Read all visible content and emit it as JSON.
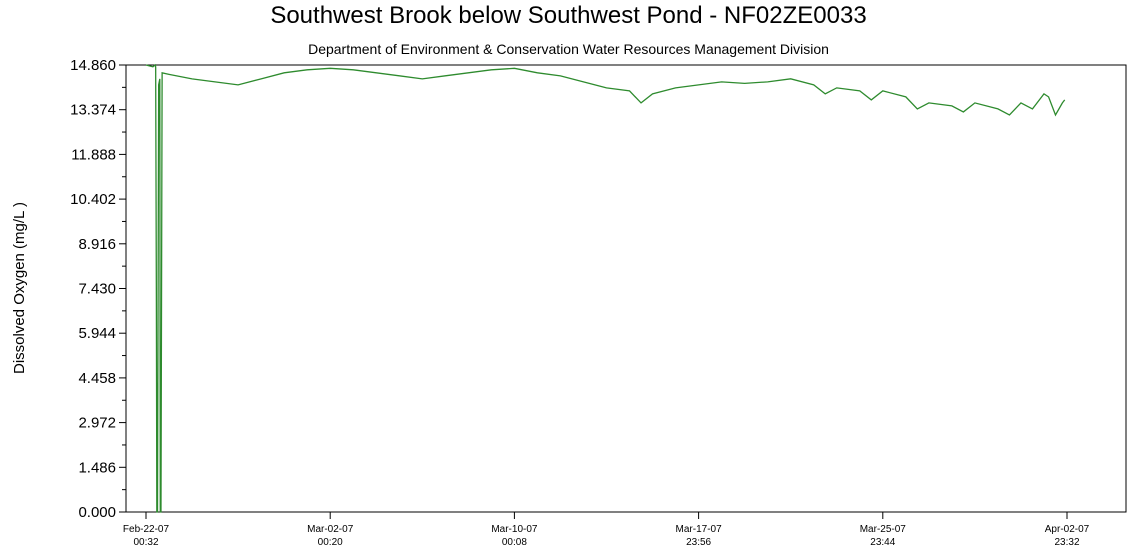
{
  "chart_data": {
    "type": "line",
    "title": "Southwest Brook below Southwest Pond - NF02ZE0033",
    "subtitle": "Department of Environment & Conservation Water Resources Management Division",
    "ylabel": "Dissolved Oxygen (mg/L )",
    "xlabel": "",
    "ylim": [
      0,
      14.86
    ],
    "y_ticks": [
      "0.000",
      "1.486",
      "2.972",
      "4.458",
      "5.944",
      "7.430",
      "8.916",
      "10.402",
      "11.888",
      "13.374",
      "14.860"
    ],
    "x_ticks": [
      {
        "date": "Feb-22-07",
        "time": "00:32",
        "day": 0
      },
      {
        "date": "Mar-02-07",
        "time": "00:20",
        "day": 8
      },
      {
        "date": "Mar-10-07",
        "time": "00:08",
        "day": 16
      },
      {
        "date": "Mar-17-07",
        "time": "23:56",
        "day": 24
      },
      {
        "date": "Mar-25-07",
        "time": "23:44",
        "day": 32
      },
      {
        "date": "Apr-02-07",
        "time": "23:32",
        "day": 40
      }
    ],
    "grid": false,
    "line_color": "#2e8b2e",
    "series": [
      {
        "x": [
          0.0,
          0.3,
          0.4,
          0.42,
          0.45,
          0.47,
          0.5,
          0.55,
          0.6,
          0.62,
          0.65,
          0.7,
          1.0,
          2.0,
          3.0,
          4.0,
          5.0,
          6.0,
          7.0,
          8.0,
          9.0,
          10.0,
          11.0,
          12.0,
          13.0,
          14.0,
          15.0,
          16.0,
          17.0,
          18.0,
          19.0,
          20.0,
          21.0,
          21.5,
          22.0,
          23.0,
          24.0,
          25.0,
          26.0,
          27.0,
          28.0,
          29.0,
          29.5,
          30.0,
          31.0,
          31.5,
          32.0,
          33.0,
          33.5,
          34.0,
          35.0,
          35.5,
          36.0,
          37.0,
          37.5,
          38.0,
          38.5,
          39.0,
          39.2,
          39.5,
          39.8,
          39.9
        ],
        "values": [
          14.86,
          14.8,
          14.86,
          14.8,
          7.2,
          0.0,
          0.0,
          14.2,
          14.4,
          0.0,
          0.0,
          14.6,
          14.55,
          14.4,
          14.3,
          14.2,
          14.4,
          14.6,
          14.7,
          14.75,
          14.7,
          14.6,
          14.5,
          14.4,
          14.5,
          14.6,
          14.7,
          14.75,
          14.6,
          14.5,
          14.3,
          14.1,
          14.0,
          13.6,
          13.9,
          14.1,
          14.2,
          14.3,
          14.25,
          14.3,
          14.4,
          14.2,
          13.9,
          14.1,
          14.0,
          13.7,
          14.0,
          13.8,
          13.4,
          13.6,
          13.5,
          13.3,
          13.6,
          13.4,
          13.2,
          13.6,
          13.4,
          13.9,
          13.8,
          13.2,
          13.6,
          13.7
        ]
      }
    ]
  }
}
